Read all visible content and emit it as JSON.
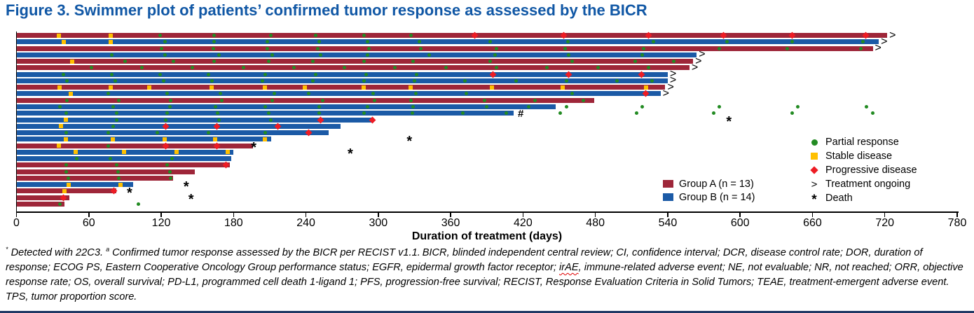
{
  "title": "Figure 3. Swimmer plot of patients’ confirmed tumor response as assessed by the BICR",
  "colors": {
    "title_blue": "#1057A5",
    "group_a": "#9E2639",
    "group_b": "#1B5AA6",
    "partial_response_green": "#228B22",
    "stable_disease_yellow": "#FFC000",
    "progressive_disease_red": "#ED1C24",
    "axis_black": "#000000",
    "bottom_rule_navy": "#1F3864"
  },
  "legend": {
    "markers": [
      {
        "type": "pr",
        "label": "Partial response"
      },
      {
        "type": "sd",
        "label": "Stable disease"
      },
      {
        "type": "pd",
        "label": "Progressive disease"
      },
      {
        "type": "ongoing",
        "glyph": ">",
        "label": "Treatment ongoing"
      },
      {
        "type": "death",
        "glyph": "*",
        "label": "Death"
      }
    ],
    "groups": [
      {
        "key": "A",
        "label": "Group A (n = 13)"
      },
      {
        "key": "B",
        "label": "Group B (n = 14)"
      }
    ]
  },
  "chart_data": {
    "type": "bar",
    "variant": "swimmer",
    "title": "",
    "xlabel": "Duration of treatment (days)",
    "ylabel": "",
    "xlim": [
      0,
      780
    ],
    "xticks": [
      0,
      60,
      120,
      180,
      240,
      300,
      360,
      420,
      480,
      540,
      600,
      660,
      720,
      780
    ],
    "grid": false,
    "legend_position": "right",
    "marker_types": {
      "pr": "partial response (green circle)",
      "sd": "stable disease (yellow square)",
      "pd": "progressive disease (red diamond)"
    },
    "rows": [
      {
        "g": "A",
        "end": 722,
        "ongoing": true,
        "death": null,
        "hash": null,
        "sd": [
          35,
          78
        ],
        "pr": [
          119,
          164,
          211,
          248,
          288,
          327
        ],
        "pd": [
          380,
          454,
          524,
          586,
          643,
          704
        ]
      },
      {
        "g": "B",
        "end": 715,
        "ongoing": true,
        "death": null,
        "hash": null,
        "sd": [
          39,
          78
        ],
        "pr": [
          123,
          164,
          208,
          251,
          291,
          334,
          393,
          457,
          528,
          589,
          643,
          702
        ],
        "pd": []
      },
      {
        "g": "A",
        "end": 710,
        "ongoing": true,
        "death": null,
        "hash": null,
        "sd": [],
        "pr": [
          120,
          163,
          208,
          250,
          292,
          335,
          398,
          455,
          520,
          583,
          639,
          700
        ],
        "pd": []
      },
      {
        "g": "B",
        "end": 564,
        "ongoing": true,
        "death": null,
        "hash": null,
        "sd": [],
        "pr": [
          79,
          123,
          168,
          212,
          252,
          291,
          342,
          397,
          458,
          519
        ],
        "pd": []
      },
      {
        "g": "A",
        "end": 561,
        "ongoing": true,
        "death": null,
        "hash": null,
        "sd": [
          46
        ],
        "pr": [
          90,
          130,
          164,
          209,
          246,
          288,
          329,
          393,
          461,
          513,
          545
        ],
        "pd": []
      },
      {
        "g": "A",
        "end": 558,
        "ongoing": true,
        "death": null,
        "hash": null,
        "sd": [],
        "pr": [
          62,
          104,
          146,
          188,
          230,
          272,
          314,
          356,
          398,
          440,
          482,
          524
        ],
        "pd": []
      },
      {
        "g": "B",
        "end": 540,
        "ongoing": true,
        "death": null,
        "hash": null,
        "sd": [],
        "pr": [
          39,
          79,
          119,
          159,
          206,
          248,
          290,
          332
        ],
        "pd": [
          395,
          458,
          518
        ]
      },
      {
        "g": "B",
        "end": 540,
        "ongoing": true,
        "death": null,
        "hash": null,
        "sd": [],
        "pr": [
          42,
          82,
          122,
          162,
          204,
          246,
          288,
          330,
          372,
          414,
          456,
          498,
          527
        ],
        "pd": []
      },
      {
        "g": "A",
        "end": 538,
        "ongoing": true,
        "death": null,
        "hash": null,
        "sd": [
          36,
          78,
          110,
          162,
          206,
          239,
          288,
          327,
          394,
          453,
          522
        ],
        "pr": [],
        "pd": []
      },
      {
        "g": "B",
        "end": 534,
        "ongoing": true,
        "death": null,
        "hash": null,
        "sd": [
          45
        ],
        "pr": [
          76,
          125,
          169,
          214,
          242,
          296,
          331,
          373,
          461
        ],
        "pd": [
          522
        ]
      },
      {
        "g": "A",
        "end": 479,
        "ongoing": false,
        "death": null,
        "hash": null,
        "sd": [],
        "pr": [
          42,
          85,
          128,
          170,
          212,
          254,
          297,
          327,
          388,
          430,
          470
        ],
        "pd": []
      },
      {
        "g": "B",
        "end": 447,
        "ongoing": false,
        "death": null,
        "hash": null,
        "sd": [],
        "pr": [
          36,
          80,
          127,
          165,
          206,
          251,
          291,
          329,
          390,
          425,
          456,
          519,
          583,
          648,
          705
        ],
        "pd": []
      },
      {
        "g": "B",
        "end": 412,
        "ongoing": false,
        "death": null,
        "hash": 418,
        "sd": [],
        "pr": [
          41,
          83,
          125,
          167,
          209,
          251,
          288,
          328,
          370,
          406,
          451,
          514,
          578,
          643,
          710
        ],
        "pd": []
      },
      {
        "g": "B",
        "end": 295,
        "ongoing": false,
        "death": 592,
        "hash": null,
        "sd": [
          41
        ],
        "pr": [
          83,
          124,
          168,
          211
        ],
        "pd": [
          252,
          295
        ]
      },
      {
        "g": "B",
        "end": 269,
        "ongoing": false,
        "death": null,
        "hash": null,
        "sd": [
          37
        ],
        "pr": [
          80
        ],
        "pd": [
          124,
          166,
          217
        ]
      },
      {
        "g": "B",
        "end": 259,
        "ongoing": false,
        "death": null,
        "hash": null,
        "sd": [],
        "pr": [
          41,
          76,
          117,
          159,
          206
        ],
        "pd": [
          242
        ]
      },
      {
        "g": "B",
        "end": 211,
        "ongoing": false,
        "death": 327,
        "hash": null,
        "sd": [
          41,
          80,
          123,
          165,
          206
        ],
        "pr": [],
        "pd": []
      },
      {
        "g": "A",
        "end": 196,
        "ongoing": false,
        "death": 198,
        "hash": null,
        "sd": [
          35
        ],
        "pr": [
          76
        ],
        "pd": [
          124,
          166
        ]
      },
      {
        "g": "B",
        "end": 180,
        "ongoing": false,
        "death": 278,
        "hash": null,
        "sd": [
          49,
          89,
          133,
          175
        ],
        "pr": [],
        "pd": []
      },
      {
        "g": "B",
        "end": 178,
        "ongoing": false,
        "death": null,
        "hash": null,
        "sd": [],
        "pr": [
          50,
          78,
          129
        ],
        "pd": []
      },
      {
        "g": "A",
        "end": 177,
        "ongoing": false,
        "death": null,
        "hash": null,
        "sd": [],
        "pr": [
          41,
          83,
          125
        ],
        "pd": [
          174
        ]
      },
      {
        "g": "A",
        "end": 148,
        "ongoing": false,
        "death": null,
        "hash": null,
        "sd": [],
        "pr": [
          41,
          84,
          127
        ],
        "pd": []
      },
      {
        "g": "A",
        "end": 130,
        "ongoing": false,
        "death": null,
        "hash": null,
        "sd": [],
        "pr": [
          43,
          85,
          128
        ],
        "pd": []
      },
      {
        "g": "B",
        "end": 97,
        "ongoing": false,
        "death": 142,
        "hash": null,
        "sd": [
          43,
          86
        ],
        "pr": [],
        "pd": []
      },
      {
        "g": "A",
        "end": 83,
        "ongoing": false,
        "death": 95,
        "hash": null,
        "sd": [
          40
        ],
        "pr": [],
        "pd": [
          81
        ]
      },
      {
        "g": "A",
        "end": 44,
        "ongoing": false,
        "death": 146,
        "hash": null,
        "sd": [],
        "pr": [],
        "pd": [
          39
        ]
      },
      {
        "g": "A",
        "end": 40,
        "ongoing": false,
        "death": null,
        "hash": null,
        "sd": [],
        "pr": [
          36,
          101
        ],
        "pd": []
      }
    ]
  },
  "footnote": {
    "segments": [
      {
        "text": "*",
        "sup": true
      },
      {
        "text": " Detected with 22C3. ",
        "sup": false
      },
      {
        "text": "a",
        "sup": true
      },
      {
        "text": " Confirmed tumor response assessed by the BICR per RECIST v1.1. BICR, blinded independent central review; CI, confidence interval; DCR, disease control rate; DOR, duration of response; ECOG PS, Eastern Cooperative Oncology Group performance status; EGFR, epidermal growth factor receptor; ",
        "sup": false
      },
      {
        "text": "irAE",
        "sup": false,
        "wavy": true
      },
      {
        "text": ", immune-related adverse event; NE, not evaluable; NR, not reached; ORR, objective response rate; OS, overall survival; PD-L1, programmed cell death 1-ligand 1; PFS, progression-free survival; RECIST, Response Evaluation Criteria in Solid Tumors; TEAE, treatment-emergent adverse event. TPS, tumor proportion score.",
        "sup": false
      }
    ]
  }
}
